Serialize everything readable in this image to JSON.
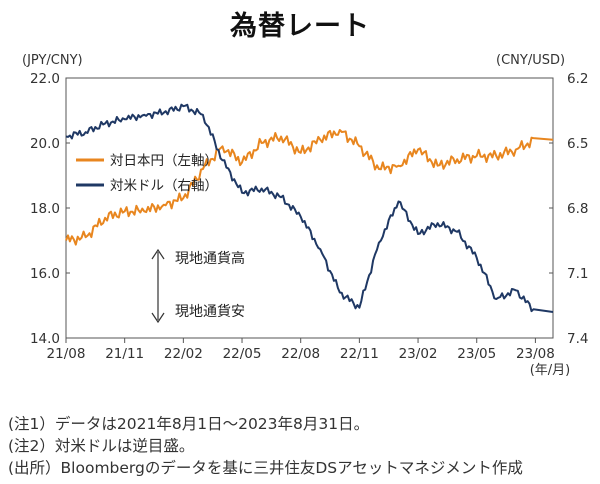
{
  "title": "為替レート",
  "chart_data": {
    "type": "line",
    "left_axis_unit": "(JPY/CNY)",
    "right_axis_unit": "(CNY/USD)",
    "x_ticks": [
      "21/08",
      "21/11",
      "22/02",
      "22/05",
      "22/08",
      "22/11",
      "23/02",
      "23/05",
      "23/08"
    ],
    "x_unit": "(年/月)",
    "ylim_left": [
      14.0,
      22.0
    ],
    "yticks_left": [
      "22.0",
      "20.0",
      "18.0",
      "16.0",
      "14.0"
    ],
    "ylim_right_inverted": [
      6.2,
      7.4
    ],
    "yticks_right": [
      "6.2",
      "6.5",
      "6.8",
      "7.1",
      "7.4"
    ],
    "annotation_up": "現地通貨高",
    "annotation_down": "現地通貨安",
    "series": [
      {
        "name": "対日本円（左軸）",
        "axis": "left",
        "color": "#E8861F",
        "x": [
          "2021-08",
          "2021-09",
          "2021-10",
          "2021-11",
          "2021-12",
          "2022-01",
          "2022-02",
          "2022-03",
          "2022-04",
          "2022-05",
          "2022-06",
          "2022-07",
          "2022-08",
          "2022-09",
          "2022-10",
          "2022-11",
          "2022-12",
          "2023-01",
          "2023-02",
          "2023-03",
          "2023-04",
          "2023-05",
          "2023-06",
          "2023-07",
          "2023-08"
        ],
        "values": [
          17.0,
          17.1,
          17.7,
          17.9,
          17.9,
          18.1,
          18.3,
          19.2,
          19.9,
          19.4,
          20.0,
          20.2,
          19.7,
          20.1,
          20.4,
          19.9,
          19.2,
          19.3,
          19.8,
          19.3,
          19.5,
          19.6,
          19.6,
          19.8,
          20.1
        ]
      },
      {
        "name": "対米ドル（右軸）",
        "axis": "right",
        "color": "#1F3864",
        "x": [
          "2021-08",
          "2021-09",
          "2021-10",
          "2021-11",
          "2021-12",
          "2022-01",
          "2022-02",
          "2022-03",
          "2022-04",
          "2022-05",
          "2022-06",
          "2022-07",
          "2022-08",
          "2022-09",
          "2022-10",
          "2022-11",
          "2022-12",
          "2023-01",
          "2023-02",
          "2023-03",
          "2023-04",
          "2023-05",
          "2023-06",
          "2023-07",
          "2023-08"
        ],
        "values": [
          6.47,
          6.45,
          6.41,
          6.39,
          6.37,
          6.36,
          6.33,
          6.37,
          6.58,
          6.73,
          6.71,
          6.75,
          6.84,
          6.99,
          7.19,
          7.26,
          6.96,
          6.77,
          6.92,
          6.87,
          6.91,
          7.03,
          7.22,
          7.18,
          7.28
        ]
      }
    ]
  },
  "notes": [
    "(注1）データは2021年8月1日～2023年8月31日。",
    "(注2）対米ドルは逆目盛。",
    "(出所）Bloombergのデータを基に三井住友DSアセットマネジメント作成"
  ]
}
